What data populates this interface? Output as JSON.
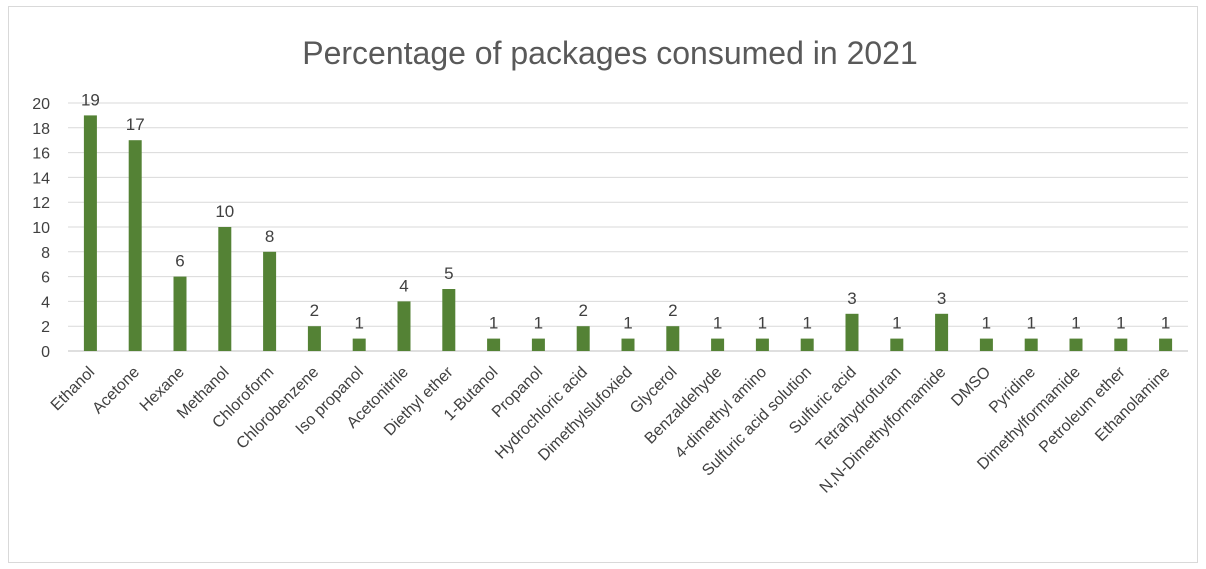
{
  "chart_data": {
    "type": "bar",
    "title": "Percentage of packages consumed in 2021",
    "categories": [
      "Ethanol",
      "Acetone",
      "Hexane",
      "Methanol",
      "Chloroform",
      "Chlorobenzene",
      "Iso propanol",
      "Acetonitrile",
      "Diethyl ether",
      "1-Butanol",
      "Propanol",
      "Hydrochloric acid",
      "Dimethylslufoxied",
      "Glycerol",
      "Benzaldehyde",
      "4-dimethyl amino",
      "Sulfuric acid solution",
      "Sulfuric acid",
      "Tetrahydrofuran",
      "N,N-Dimethylformamide",
      "DMSO",
      "Pyridine",
      "Dimethylformamide",
      "Petroleum ether",
      "Ethanolamine"
    ],
    "values": [
      19,
      17,
      6,
      10,
      8,
      2,
      1,
      4,
      5,
      1,
      1,
      2,
      1,
      2,
      1,
      1,
      1,
      3,
      1,
      3,
      1,
      1,
      1,
      1,
      1
    ],
    "ylim": [
      0,
      20
    ],
    "yticks": [
      0,
      2,
      4,
      6,
      8,
      10,
      12,
      14,
      16,
      18,
      20
    ],
    "grid": true,
    "data_labels": true,
    "bar_color": "#548235"
  }
}
